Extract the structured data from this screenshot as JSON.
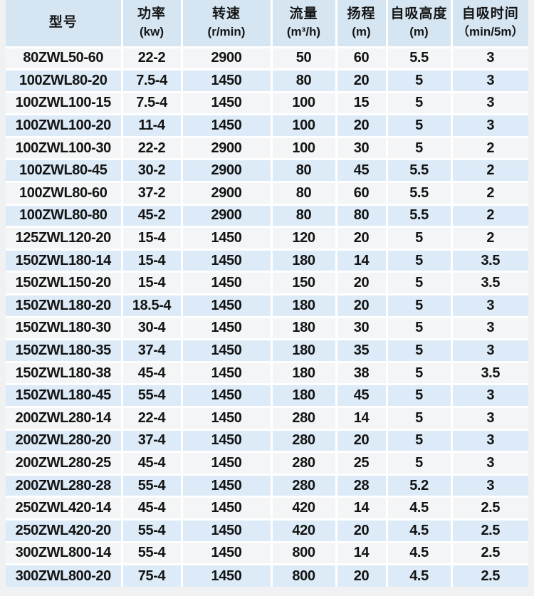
{
  "colors": {
    "header_bg": "#d5e6f2",
    "row_blue": "#dcebf7",
    "row_white": "#f4f5f6",
    "gridline": "#ffffff",
    "page_bg": "#f0f1f2",
    "text": "#141414"
  },
  "table": {
    "column_keys": [
      "model",
      "power-kw",
      "speed-rpm",
      "flow-m3h",
      "head-m",
      "suction-height-m",
      "suction-time"
    ],
    "headers": [
      {
        "title": "型号",
        "unit": ""
      },
      {
        "title": "功率",
        "unit": "(kw)"
      },
      {
        "title": "转速",
        "unit": "(r/min)"
      },
      {
        "title": "流量",
        "unit": "(m³/h)"
      },
      {
        "title": "扬程",
        "unit": "(m)"
      },
      {
        "title": "自吸高度",
        "unit": "(m)"
      },
      {
        "title": "自吸时间",
        "unit": "（min/5m）"
      }
    ],
    "rows": [
      [
        "80ZWL50-60",
        "22-2",
        "2900",
        "50",
        "60",
        "5.5",
        "3"
      ],
      [
        "100ZWL80-20",
        "7.5-4",
        "1450",
        "80",
        "20",
        "5",
        "3"
      ],
      [
        "100ZWL100-15",
        "7.5-4",
        "1450",
        "100",
        "15",
        "5",
        "3"
      ],
      [
        "100ZWL100-20",
        "11-4",
        "1450",
        "100",
        "20",
        "5",
        "3"
      ],
      [
        "100ZWL100-30",
        "22-2",
        "2900",
        "100",
        "30",
        "5",
        "2"
      ],
      [
        "100ZWL80-45",
        "30-2",
        "2900",
        "80",
        "45",
        "5.5",
        "2"
      ],
      [
        "100ZWL80-60",
        "37-2",
        "2900",
        "80",
        "60",
        "5.5",
        "2"
      ],
      [
        "100ZWL80-80",
        "45-2",
        "2900",
        "80",
        "80",
        "5.5",
        "2"
      ],
      [
        "125ZWL120-20",
        "15-4",
        "1450",
        "120",
        "20",
        "5",
        "2"
      ],
      [
        "150ZWL180-14",
        "15-4",
        "1450",
        "180",
        "14",
        "5",
        "3.5"
      ],
      [
        "150ZWL150-20",
        "15-4",
        "1450",
        "150",
        "20",
        "5",
        "3.5"
      ],
      [
        "150ZWL180-20",
        "18.5-4",
        "1450",
        "180",
        "20",
        "5",
        "3"
      ],
      [
        "150ZWL180-30",
        "30-4",
        "1450",
        "180",
        "30",
        "5",
        "3"
      ],
      [
        "150ZWL180-35",
        "37-4",
        "1450",
        "180",
        "35",
        "5",
        "3"
      ],
      [
        "150ZWL180-38",
        "45-4",
        "1450",
        "180",
        "38",
        "5",
        "3.5"
      ],
      [
        "150ZWL180-45",
        "55-4",
        "1450",
        "180",
        "45",
        "5",
        "3"
      ],
      [
        "200ZWL280-14",
        "22-4",
        "1450",
        "280",
        "14",
        "5",
        "3"
      ],
      [
        "200ZWL280-20",
        "37-4",
        "1450",
        "280",
        "20",
        "5",
        "3"
      ],
      [
        "200ZWL280-25",
        "45-4",
        "1450",
        "280",
        "25",
        "5",
        "3"
      ],
      [
        "200ZWL280-28",
        "55-4",
        "1450",
        "280",
        "28",
        "5.2",
        "3"
      ],
      [
        "250ZWL420-14",
        "45-4",
        "1450",
        "420",
        "14",
        "4.5",
        "2.5"
      ],
      [
        "250ZWL420-20",
        "55-4",
        "1450",
        "420",
        "20",
        "4.5",
        "2.5"
      ],
      [
        "300ZWL800-14",
        "55-4",
        "1450",
        "800",
        "14",
        "4.5",
        "2.5"
      ],
      [
        "300ZWL800-20",
        "75-4",
        "1450",
        "800",
        "20",
        "4.5",
        "2.5"
      ]
    ]
  }
}
